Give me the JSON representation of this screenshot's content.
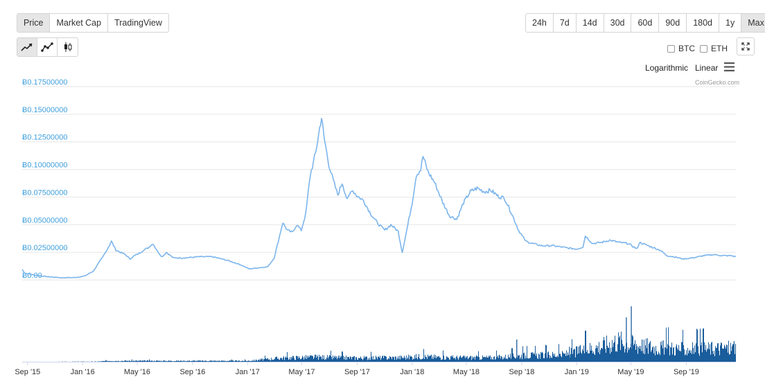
{
  "tabs": {
    "type": [
      {
        "label": "Price",
        "active": true
      },
      {
        "label": "Market Cap",
        "active": false
      },
      {
        "label": "TradingView",
        "active": false
      }
    ],
    "range": [
      {
        "label": "24h",
        "active": false
      },
      {
        "label": "7d",
        "active": false
      },
      {
        "label": "14d",
        "active": false
      },
      {
        "label": "30d",
        "active": false
      },
      {
        "label": "60d",
        "active": false
      },
      {
        "label": "90d",
        "active": false
      },
      {
        "label": "180d",
        "active": false
      },
      {
        "label": "1y",
        "active": false
      },
      {
        "label": "Max",
        "active": true
      }
    ],
    "style_icons": [
      "line-chart-icon",
      "line-points-icon",
      "candlestick-icon"
    ]
  },
  "compare": {
    "btc": "BTC",
    "eth": "ETH"
  },
  "scale": {
    "logarithmic": "Logarithmic",
    "linear": "Linear"
  },
  "credit": "CoinGecko.com",
  "colors": {
    "line": "#7cb5ec",
    "volume": "#1a5d9c",
    "axis_label": "#3f9fdc",
    "grid": "#e6e6e6"
  },
  "chart_data": {
    "type": "line",
    "title": "",
    "ylabel": "",
    "ylim": [
      0,
      0.175
    ],
    "y_ticks": [
      0,
      0.025,
      0.05,
      0.075,
      0.1,
      0.125,
      0.15,
      0.175
    ],
    "y_tick_labels": [
      "Ƀ0.00",
      "Ƀ0.02500000",
      "Ƀ0.05000000",
      "Ƀ0.07500000",
      "Ƀ0.10000000",
      "Ƀ0.12500000",
      "Ƀ0.15000000",
      "Ƀ0.17500000"
    ],
    "x_range": [
      "2015-08-20",
      "2019-12-20"
    ],
    "x_ticks": [
      {
        "date": "2015-09-01",
        "label": "Sep '15"
      },
      {
        "date": "2016-01-01",
        "label": "Jan '16"
      },
      {
        "date": "2016-05-01",
        "label": "May '16"
      },
      {
        "date": "2016-09-01",
        "label": "Sep '16"
      },
      {
        "date": "2017-01-01",
        "label": "Jan '17"
      },
      {
        "date": "2017-05-01",
        "label": "May '17"
      },
      {
        "date": "2017-09-01",
        "label": "Sep '17"
      },
      {
        "date": "2018-01-01",
        "label": "Jan '18"
      },
      {
        "date": "2018-05-01",
        "label": "May '18"
      },
      {
        "date": "2018-09-01",
        "label": "Sep '18"
      },
      {
        "date": "2019-01-01",
        "label": "Jan '19"
      },
      {
        "date": "2019-05-01",
        "label": "May '19"
      },
      {
        "date": "2019-09-01",
        "label": "Sep '19"
      }
    ],
    "grid": true,
    "series": [
      {
        "values_date_price": [
          [
            "2015-08-20",
            0.0095
          ],
          [
            "2015-08-26",
            0.006
          ],
          [
            "2015-09-15",
            0.0045
          ],
          [
            "2015-10-15",
            0.003
          ],
          [
            "2015-11-15",
            0.002
          ],
          [
            "2015-12-15",
            0.0022
          ],
          [
            "2016-01-05",
            0.0035
          ],
          [
            "2016-01-25",
            0.008
          ],
          [
            "2016-02-05",
            0.015
          ],
          [
            "2016-02-15",
            0.021
          ],
          [
            "2016-02-25",
            0.028
          ],
          [
            "2016-03-05",
            0.035
          ],
          [
            "2016-03-15",
            0.027
          ],
          [
            "2016-03-25",
            0.025
          ],
          [
            "2016-04-05",
            0.023
          ],
          [
            "2016-04-15",
            0.019
          ],
          [
            "2016-04-25",
            0.022
          ],
          [
            "2016-05-05",
            0.024
          ],
          [
            "2016-05-15",
            0.027
          ],
          [
            "2016-05-25",
            0.029
          ],
          [
            "2016-06-05",
            0.033
          ],
          [
            "2016-06-15",
            0.026
          ],
          [
            "2016-06-25",
            0.021
          ],
          [
            "2016-07-05",
            0.025
          ],
          [
            "2016-07-20",
            0.02
          ],
          [
            "2016-08-15",
            0.02
          ],
          [
            "2016-09-15",
            0.021
          ],
          [
            "2016-10-15",
            0.021
          ],
          [
            "2016-11-15",
            0.018
          ],
          [
            "2016-12-15",
            0.014
          ],
          [
            "2017-01-05",
            0.01
          ],
          [
            "2017-01-25",
            0.011
          ],
          [
            "2017-02-15",
            0.012
          ],
          [
            "2017-03-01",
            0.02
          ],
          [
            "2017-03-10",
            0.035
          ],
          [
            "2017-03-20",
            0.052
          ],
          [
            "2017-03-30",
            0.045
          ],
          [
            "2017-04-10",
            0.043
          ],
          [
            "2017-04-20",
            0.05
          ],
          [
            "2017-04-30",
            0.045
          ],
          [
            "2017-05-10",
            0.06
          ],
          [
            "2017-05-20",
            0.095
          ],
          [
            "2017-06-01",
            0.115
          ],
          [
            "2017-06-10",
            0.138
          ],
          [
            "2017-06-14",
            0.147
          ],
          [
            "2017-06-20",
            0.128
          ],
          [
            "2017-06-30",
            0.105
          ],
          [
            "2017-07-10",
            0.09
          ],
          [
            "2017-07-20",
            0.077
          ],
          [
            "2017-07-30",
            0.088
          ],
          [
            "2017-08-10",
            0.072
          ],
          [
            "2017-08-20",
            0.082
          ],
          [
            "2017-09-01",
            0.076
          ],
          [
            "2017-09-15",
            0.072
          ],
          [
            "2017-10-01",
            0.06
          ],
          [
            "2017-10-15",
            0.052
          ],
          [
            "2017-11-01",
            0.045
          ],
          [
            "2017-11-15",
            0.05
          ],
          [
            "2017-12-01",
            0.044
          ],
          [
            "2017-12-10",
            0.025
          ],
          [
            "2017-12-20",
            0.045
          ],
          [
            "2018-01-01",
            0.07
          ],
          [
            "2018-01-10",
            0.095
          ],
          [
            "2018-01-20",
            0.1
          ],
          [
            "2018-01-25",
            0.112
          ],
          [
            "2018-02-05",
            0.098
          ],
          [
            "2018-02-20",
            0.088
          ],
          [
            "2018-03-10",
            0.07
          ],
          [
            "2018-03-25",
            0.058
          ],
          [
            "2018-04-10",
            0.055
          ],
          [
            "2018-04-25",
            0.07
          ],
          [
            "2018-05-10",
            0.08
          ],
          [
            "2018-05-25",
            0.083
          ],
          [
            "2018-06-10",
            0.08
          ],
          [
            "2018-06-25",
            0.081
          ],
          [
            "2018-07-10",
            0.076
          ],
          [
            "2018-07-25",
            0.074
          ],
          [
            "2018-08-10",
            0.06
          ],
          [
            "2018-08-25",
            0.045
          ],
          [
            "2018-09-10",
            0.035
          ],
          [
            "2018-09-25",
            0.033
          ],
          [
            "2018-10-15",
            0.031
          ],
          [
            "2018-11-10",
            0.031
          ],
          [
            "2018-12-10",
            0.029
          ],
          [
            "2019-01-01",
            0.028
          ],
          [
            "2019-01-15",
            0.03
          ],
          [
            "2019-01-20",
            0.04
          ],
          [
            "2019-02-05",
            0.033
          ],
          [
            "2019-02-25",
            0.034
          ],
          [
            "2019-03-15",
            0.036
          ],
          [
            "2019-04-05",
            0.034
          ],
          [
            "2019-04-25",
            0.033
          ],
          [
            "2019-05-15",
            0.028
          ],
          [
            "2019-05-20",
            0.034
          ],
          [
            "2019-06-15",
            0.03
          ],
          [
            "2019-07-05",
            0.027
          ],
          [
            "2019-07-20",
            0.022
          ],
          [
            "2019-08-05",
            0.021
          ],
          [
            "2019-08-25",
            0.019
          ],
          [
            "2019-09-15",
            0.02
          ],
          [
            "2019-10-10",
            0.022
          ],
          [
            "2019-11-01",
            0.023
          ],
          [
            "2019-11-20",
            0.022
          ],
          [
            "2019-12-10",
            0.022
          ],
          [
            "2019-12-20",
            0.021
          ]
        ]
      }
    ],
    "volume": {
      "ylim": [
        0,
        1.0
      ],
      "values_date_relative": [
        [
          "2015-08-20",
          0.0
        ],
        [
          "2016-02-01",
          0.005
        ],
        [
          "2016-03-01",
          0.02
        ],
        [
          "2016-06-01",
          0.02
        ],
        [
          "2016-10-01",
          0.02
        ],
        [
          "2017-01-01",
          0.02
        ],
        [
          "2017-03-15",
          0.08
        ],
        [
          "2017-06-01",
          0.1
        ],
        [
          "2017-09-01",
          0.08
        ],
        [
          "2017-12-01",
          0.09
        ],
        [
          "2018-01-15",
          0.11
        ],
        [
          "2018-04-01",
          0.09
        ],
        [
          "2018-07-01",
          0.09
        ],
        [
          "2018-09-01",
          0.13
        ],
        [
          "2018-12-01",
          0.15
        ],
        [
          "2019-01-15",
          0.25
        ],
        [
          "2019-03-01",
          0.35
        ],
        [
          "2019-04-01",
          0.45
        ],
        [
          "2019-05-01",
          0.38
        ],
        [
          "2019-07-01",
          0.3
        ],
        [
          "2019-09-01",
          0.27
        ],
        [
          "2019-12-20",
          0.3
        ]
      ],
      "spikes_date_relative": [
        [
          "2018-08-20",
          0.4
        ],
        [
          "2018-12-15",
          0.27
        ],
        [
          "2019-01-20",
          0.3
        ],
        [
          "2019-04-20",
          0.8
        ],
        [
          "2019-05-01",
          1.0
        ],
        [
          "2019-05-25",
          0.4
        ],
        [
          "2019-12-15",
          0.37
        ]
      ]
    }
  }
}
